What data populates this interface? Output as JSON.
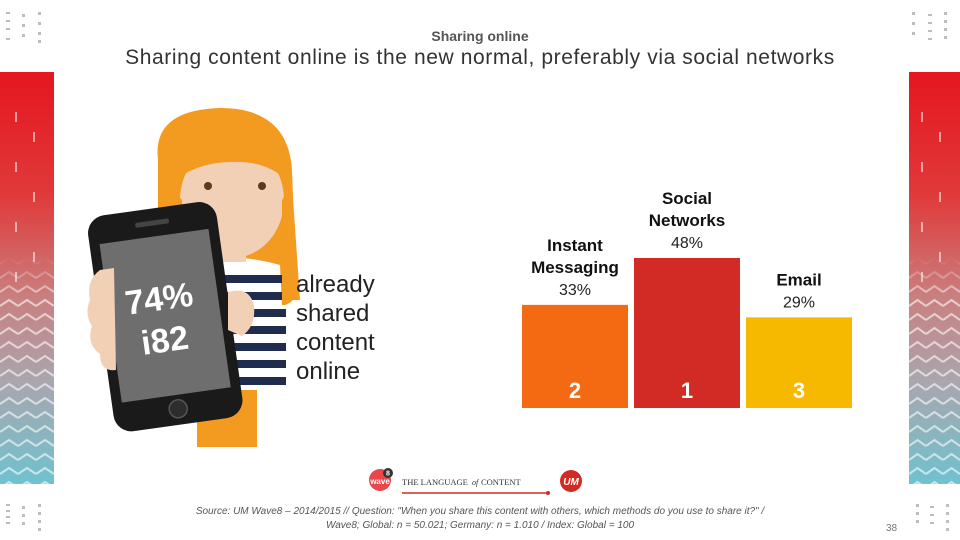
{
  "slide": {
    "subtitle": "Sharing online",
    "title": "Sharing content online is the new normal, preferably via social networks",
    "phone_stat_pct": "74%",
    "phone_stat_index": "i82",
    "caption_lines": [
      "already",
      "shared",
      "content",
      "online"
    ],
    "footer": {
      "wave_label": "wave",
      "wave_number": "8",
      "tagline_pre": "THE LANGUAGE",
      "tagline_of": "of",
      "tagline_post": "CONTENT",
      "brand": "UM"
    },
    "source_line1": "Source: UM Wave8 – 2014/2015 // Question: \"When you share this content with others, which methods do you use to share it?\" /",
    "source_line2": "Wave8; Global: n = 50.021; Germany: n = 1.010 / Index: Global = 100",
    "page_number": "38"
  },
  "colors": {
    "accent_red": "#d22b25",
    "instant_messaging": "#f46a12",
    "social_networks": "#d22b25",
    "email": "#f7b900"
  },
  "chart_data": {
    "type": "bar",
    "categories": [
      "Instant Messaging",
      "Social Networks",
      "Email"
    ],
    "category_lines": [
      [
        "Instant",
        "Messaging"
      ],
      [
        "Social",
        "Networks"
      ],
      [
        "Email"
      ]
    ],
    "values": [
      33,
      48,
      29
    ],
    "value_labels": [
      "33%",
      "48%",
      "29%"
    ],
    "ranks": [
      "2",
      "1",
      "3"
    ],
    "colors": [
      "#f46a12",
      "#d22b25",
      "#f7b900"
    ],
    "title": "",
    "xlabel": "",
    "ylabel": "",
    "ylim": [
      0,
      48
    ],
    "grid": false
  }
}
